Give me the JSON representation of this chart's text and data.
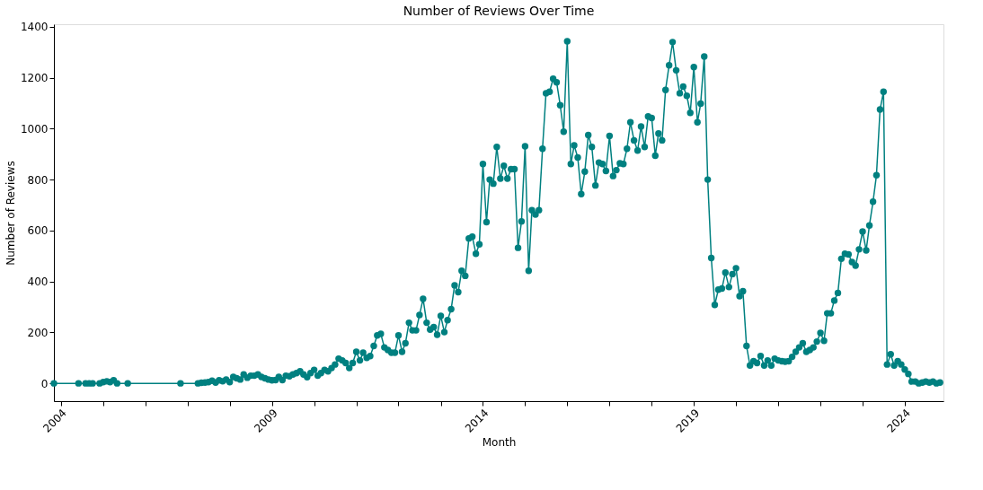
{
  "chart_data": {
    "type": "line",
    "title": "Number of Reviews Over Time",
    "xlabel": "Month",
    "ylabel": "Number of Reviews",
    "x": [
      "2003-11",
      "2004-06",
      "2004-08",
      "2004-09",
      "2004-10",
      "2004-12",
      "2005-01",
      "2005-02",
      "2005-03",
      "2005-04",
      "2005-05",
      "2005-08",
      "2006-11",
      "2007-04",
      "2007-05",
      "2007-06",
      "2007-07",
      "2007-08",
      "2007-09",
      "2007-10",
      "2007-11",
      "2007-12",
      "2008-01",
      "2008-02",
      "2008-03",
      "2008-04",
      "2008-05",
      "2008-06",
      "2008-07",
      "2008-08",
      "2008-09",
      "2008-10",
      "2008-11",
      "2008-12",
      "2009-01",
      "2009-02",
      "2009-03",
      "2009-04",
      "2009-05",
      "2009-06",
      "2009-07",
      "2009-08",
      "2009-09",
      "2009-10",
      "2009-11",
      "2009-12",
      "2010-01",
      "2010-02",
      "2010-03",
      "2010-04",
      "2010-05",
      "2010-06",
      "2010-07",
      "2010-08",
      "2010-09",
      "2010-10",
      "2010-11",
      "2010-12",
      "2011-01",
      "2011-02",
      "2011-03",
      "2011-04",
      "2011-05",
      "2011-06",
      "2011-07",
      "2011-08",
      "2011-09",
      "2011-10",
      "2011-11",
      "2011-12",
      "2012-01",
      "2012-02",
      "2012-03",
      "2012-04",
      "2012-05",
      "2012-06",
      "2012-07",
      "2012-08",
      "2012-09",
      "2012-10",
      "2012-11",
      "2012-12",
      "2013-01",
      "2013-02",
      "2013-03",
      "2013-04",
      "2013-05",
      "2013-06",
      "2013-07",
      "2013-08",
      "2013-09",
      "2013-10",
      "2013-11",
      "2013-12",
      "2014-01",
      "2014-02",
      "2014-03",
      "2014-04",
      "2014-05",
      "2014-06",
      "2014-07",
      "2014-08",
      "2014-09",
      "2014-10",
      "2014-11",
      "2014-12",
      "2015-01",
      "2015-02",
      "2015-03",
      "2015-04",
      "2015-05",
      "2015-06",
      "2015-07",
      "2015-08",
      "2015-09",
      "2015-10",
      "2015-11",
      "2015-12",
      "2016-01",
      "2016-02",
      "2016-03",
      "2016-04",
      "2016-05",
      "2016-06",
      "2016-07",
      "2016-08",
      "2016-09",
      "2016-10",
      "2016-11",
      "2016-12",
      "2017-01",
      "2017-02",
      "2017-03",
      "2017-04",
      "2017-05",
      "2017-06",
      "2017-07",
      "2017-08",
      "2017-09",
      "2017-10",
      "2017-11",
      "2017-12",
      "2018-01",
      "2018-02",
      "2018-03",
      "2018-04",
      "2018-05",
      "2018-06",
      "2018-07",
      "2018-08",
      "2018-09",
      "2018-10",
      "2018-11",
      "2018-12",
      "2019-01",
      "2019-02",
      "2019-03",
      "2019-04",
      "2019-05",
      "2019-06",
      "2019-07",
      "2019-08",
      "2019-09",
      "2019-10",
      "2019-11",
      "2019-12",
      "2020-01",
      "2020-02",
      "2020-03",
      "2020-04",
      "2020-05",
      "2020-06",
      "2020-07",
      "2020-08",
      "2020-09",
      "2020-10",
      "2020-11",
      "2020-12",
      "2021-01",
      "2021-02",
      "2021-03",
      "2021-04",
      "2021-05",
      "2021-06",
      "2021-07",
      "2021-08",
      "2021-09",
      "2021-10",
      "2021-11",
      "2021-12",
      "2022-01",
      "2022-02",
      "2022-03",
      "2022-04",
      "2022-05",
      "2022-06",
      "2022-07",
      "2022-08",
      "2022-09",
      "2022-10",
      "2022-11",
      "2022-12",
      "2023-01",
      "2023-02",
      "2023-03",
      "2023-04",
      "2023-05",
      "2023-06",
      "2023-07",
      "2023-08",
      "2023-09",
      "2023-10",
      "2023-11",
      "2023-12",
      "2024-01",
      "2024-02",
      "2024-03",
      "2024-04",
      "2024-05",
      "2024-06",
      "2024-07",
      "2024-08",
      "2024-09",
      "2024-10",
      "2024-11"
    ],
    "series": [
      {
        "color": "#008080",
        "values": [
          0,
          0,
          0,
          0,
          0,
          0,
          5,
          8,
          5,
          12,
          0,
          0,
          0,
          0,
          2,
          3,
          5,
          10,
          3,
          12,
          8,
          15,
          5,
          25,
          20,
          15,
          35,
          22,
          30,
          30,
          35,
          25,
          20,
          15,
          12,
          13,
          25,
          13,
          30,
          28,
          35,
          40,
          47,
          35,
          24,
          40,
          53,
          30,
          40,
          53,
          47,
          60,
          74,
          97,
          90,
          80,
          60,
          80,
          124,
          90,
          120,
          100,
          107,
          147,
          188,
          194,
          141,
          131,
          120,
          120,
          188,
          124,
          157,
          238,
          208,
          208,
          268,
          332,
          238,
          211,
          221,
          191,
          265,
          201,
          248,
          291,
          385,
          358,
          442,
          422,
          569,
          576,
          509,
          546,
          861,
          633,
          800,
          784,
          928,
          804,
          854,
          804,
          841,
          841,
          532,
          636,
          931,
          442,
          680,
          663,
          680,
          921,
          1139,
          1145,
          1196,
          1182,
          1092,
          988,
          1343,
          861,
          934,
          887,
          743,
          831,
          975,
          928,
          777,
          867,
          861,
          834,
          971,
          814,
          837,
          864,
          861,
          921,
          1025,
          954,
          914,
          1008,
          928,
          1048,
          1042,
          894,
          981,
          954,
          1152,
          1249,
          1340,
          1229,
          1139,
          1165,
          1129,
          1062,
          1242,
          1025,
          1098,
          1283,
          800,
          492,
          308,
          368,
          372,
          435,
          378,
          429,
          452,
          342,
          362,
          147,
          70,
          87,
          80,
          107,
          70,
          90,
          70,
          97,
          90,
          87,
          85,
          87,
          104,
          124,
          141,
          157,
          124,
          131,
          141,
          164,
          198,
          167,
          275,
          275,
          325,
          355,
          489,
          509,
          506,
          476,
          462,
          526,
          596,
          522,
          620,
          713,
          817,
          1075,
          1145,
          74,
          114,
          70,
          87,
          74,
          54,
          37,
          7,
          7,
          0,
          3,
          7,
          3,
          7,
          0,
          3
        ]
      }
    ],
    "xlim": [
      "2003-11",
      "2024-12"
    ],
    "xticks": [
      "2004",
      {
        "value": "2005",
        "label": null
      },
      {
        "value": "2006",
        "label": null
      },
      {
        "value": "2007",
        "label": null
      },
      {
        "value": "2008",
        "label": null
      },
      "2009",
      {
        "value": "2010",
        "label": null
      },
      {
        "value": "2011",
        "label": null
      },
      {
        "value": "2012",
        "label": null
      },
      {
        "value": "2013",
        "label": null
      },
      "2014",
      {
        "value": "2015",
        "label": null
      },
      {
        "value": "2016",
        "label": null
      },
      {
        "value": "2017",
        "label": null
      },
      {
        "value": "2018",
        "label": null
      },
      "2019",
      {
        "value": "2020",
        "label": null
      },
      {
        "value": "2021",
        "label": null
      },
      {
        "value": "2022",
        "label": null
      },
      {
        "value": "2023",
        "label": null
      },
      "2024"
    ],
    "ylim": [
      -70,
      1410
    ],
    "yticks": [
      0,
      200,
      400,
      600,
      800,
      1000,
      1200,
      1400
    ],
    "marker": "circle",
    "line_style": "solid",
    "grid": false
  }
}
